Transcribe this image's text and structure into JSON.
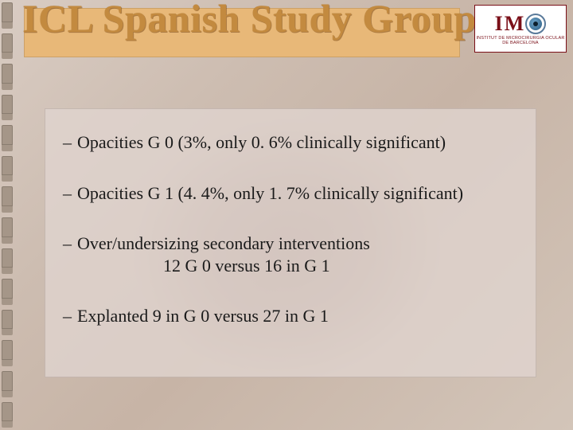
{
  "slide": {
    "background_color": "#cdbdb1",
    "title": {
      "text": "ICL Spanish Study Group",
      "bar_color": "#e8b878",
      "text_color": "#c38a3f",
      "font_family": "Comic Sans MS",
      "font_size_pt": 38
    },
    "logo": {
      "letters_left": "I M",
      "letters_right": "",
      "full": "I M O",
      "sub_line1": "INSTITUT DE MICROCIRURGIA OCULAR",
      "sub_line2": "DE BARCELONA",
      "border_color": "#7a0f18",
      "text_color": "#7a0f18",
      "eye_colors": {
        "ring": "#5a7a9a",
        "iris": "#3d7096",
        "pupil": "#0d1f2d"
      }
    },
    "content": {
      "box_bg": "rgba(224,213,208,0.78)",
      "font_family": "Times New Roman",
      "font_size_pt": 17,
      "text_color": "#1a1a1a",
      "bullets": [
        {
          "line1": "Opacities G 0 (3%, only 0. 6% clinically significant)"
        },
        {
          "line1": "Opacities G 1 (4. 4%, only 1. 7% clinically significant)"
        },
        {
          "line1": "Over/undersizing secondary interventions",
          "line2": "12 G 0 versus 16 in G 1"
        },
        {
          "line1": "Explanted 9 in G 0 versus 27 in G 1"
        }
      ]
    }
  }
}
